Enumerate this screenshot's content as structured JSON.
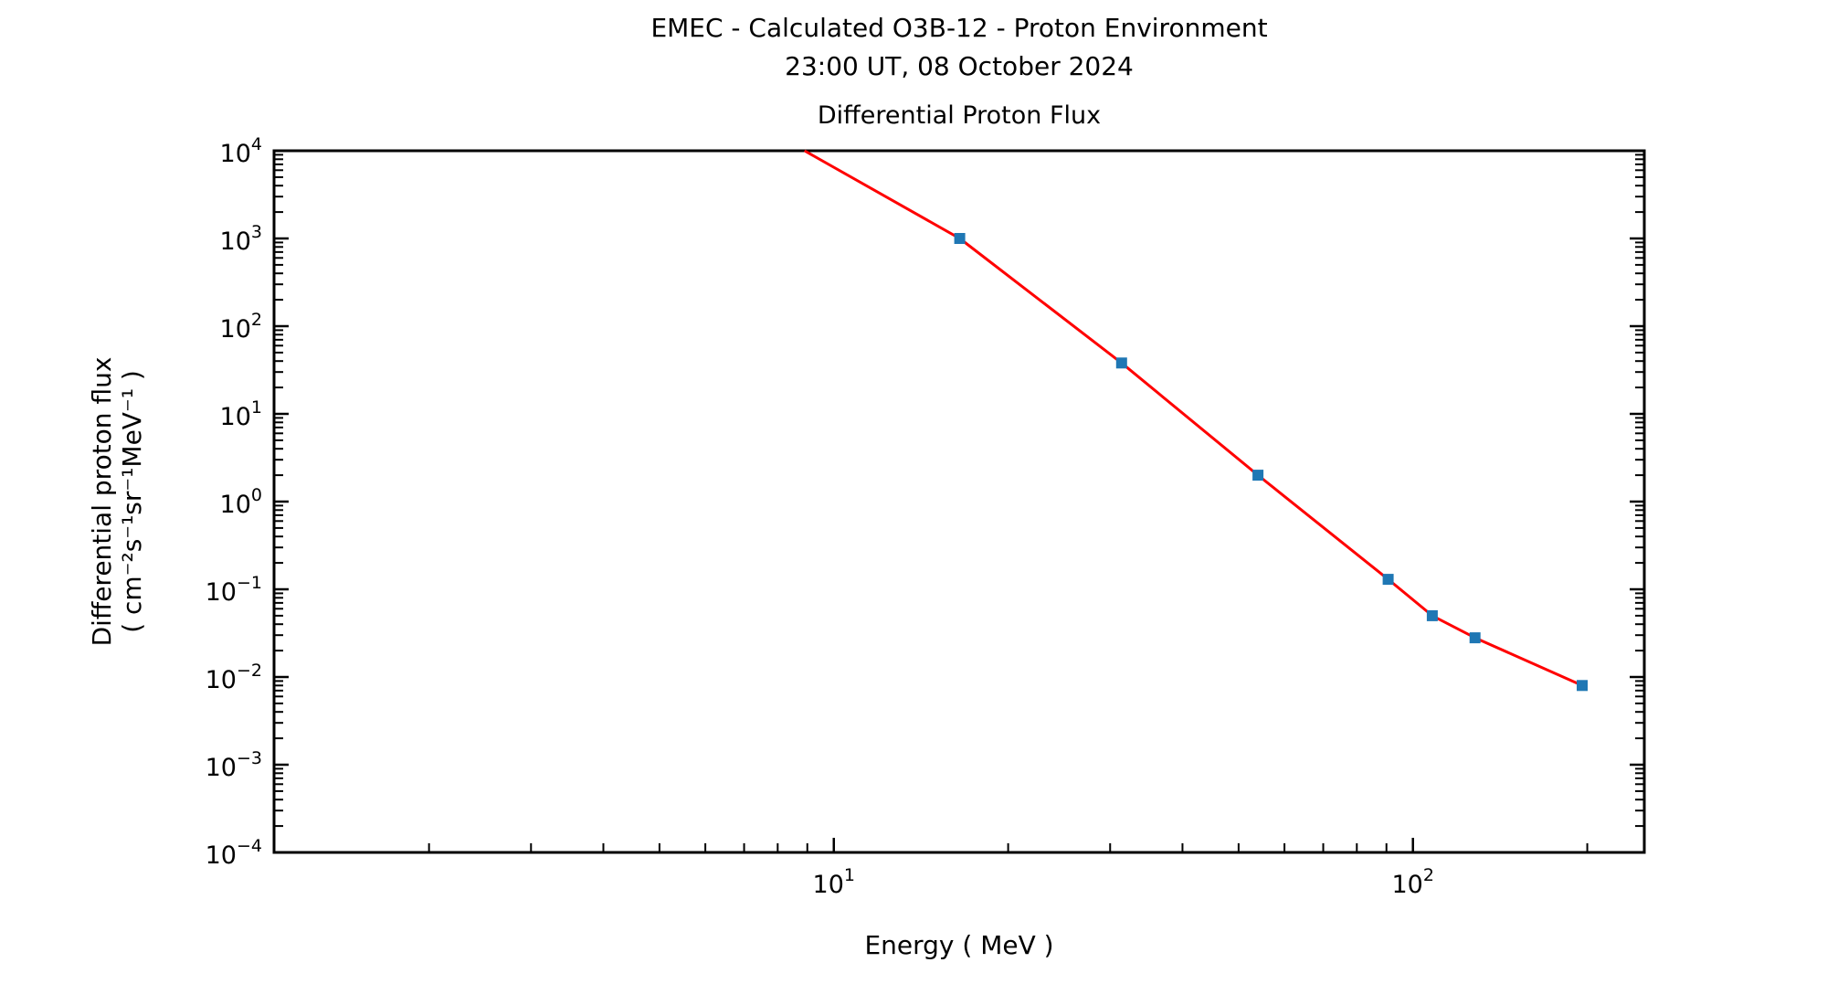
{
  "page": {
    "suptitle": "EMEC - Calculated O3B-12 - Proton Environment",
    "subtitle": "23:00 UT, 08 October 2024"
  },
  "chart_data": {
    "type": "line",
    "title": "Differential Proton Flux",
    "xlabel": "Energy ( MeV )",
    "ylabel_line1": "Differential proton flux",
    "ylabel_line2": "( cm⁻²s⁻¹sr⁻¹MeV⁻¹ )",
    "x_scale": "log",
    "y_scale": "log",
    "xlim": [
      1.08,
      250.9
    ],
    "ylim": [
      0.0001,
      10000
    ],
    "x_tick_label_exponents": [
      1,
      2
    ],
    "y_tick_label_exponents": [
      4,
      3,
      2,
      1,
      0,
      -1,
      -2,
      -3,
      -4
    ],
    "grid": false,
    "legend": "none",
    "tick_direction": "in",
    "colors": {
      "line": "#ff0000",
      "marker": "#1f77b4",
      "axes": "#000000",
      "text": "#000000"
    },
    "series": [
      {
        "name": "differential-proton-flux",
        "line_color": "#ff0000",
        "marker_color": "#1f77b4",
        "marker_shape": "square",
        "x": [
          16.5,
          31.4,
          54,
          90.6,
          108,
          128,
          196
        ],
        "y": [
          1000,
          38,
          2.0,
          0.13,
          0.05,
          0.028,
          0.008
        ],
        "clipped_entry": {
          "x": 8.9,
          "y": 10000,
          "note": "line enters plot at the top axis; preceding data lies above y-axis maximum"
        }
      }
    ]
  }
}
